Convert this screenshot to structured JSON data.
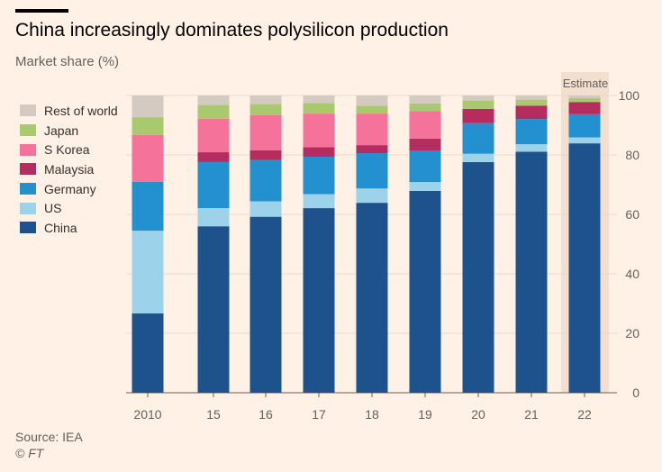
{
  "chart_data": {
    "type": "bar",
    "stacked": true,
    "title": "China increasingly dominates polysilicon production",
    "subtitle": "Market share (%)",
    "categories": [
      "2010",
      "15",
      "16",
      "17",
      "18",
      "19",
      "20",
      "21",
      "22"
    ],
    "ylim": [
      0,
      100
    ],
    "yticks": [
      0,
      20,
      40,
      60,
      80,
      100
    ],
    "grid": true,
    "legend_placement": "top-left",
    "annotation": {
      "label": "Estimate",
      "category": "22"
    },
    "series": [
      {
        "name": "China",
        "color": "#1e528c",
        "values": [
          26.7,
          56.0,
          59.2,
          62.1,
          63.9,
          67.9,
          77.6,
          81.1,
          83.9
        ]
      },
      {
        "name": "US",
        "color": "#9dd3ea",
        "values": [
          27.8,
          6.1,
          5.2,
          4.7,
          4.8,
          3.0,
          2.8,
          2.5,
          2.0
        ]
      },
      {
        "name": "Germany",
        "color": "#2391cf",
        "values": [
          16.5,
          15.5,
          13.9,
          12.6,
          11.9,
          10.5,
          10.3,
          8.5,
          7.8
        ]
      },
      {
        "name": "Malaysia",
        "color": "#b52d5e",
        "values": [
          0,
          3.3,
          3.3,
          3.2,
          2.7,
          4.1,
          4.8,
          4.5,
          4.1
        ]
      },
      {
        "name": "S Korea",
        "color": "#f5739a",
        "values": [
          15.7,
          11.3,
          11.8,
          11.3,
          10.6,
          9.3,
          0,
          0,
          0
        ]
      },
      {
        "name": "Japan",
        "color": "#a8c96e",
        "values": [
          6.0,
          4.6,
          3.7,
          3.6,
          2.6,
          2.5,
          2.8,
          2.0,
          1.3
        ]
      },
      {
        "name": "Rest of world",
        "color": "#d4cac1",
        "values": [
          7.3,
          3.2,
          2.9,
          2.5,
          3.5,
          2.7,
          1.7,
          1.4,
          0.9
        ]
      }
    ]
  },
  "legend_order": [
    6,
    5,
    4,
    3,
    2,
    1,
    0
  ],
  "footer": {
    "source": "Source: IEA",
    "copyright": "© FT"
  }
}
